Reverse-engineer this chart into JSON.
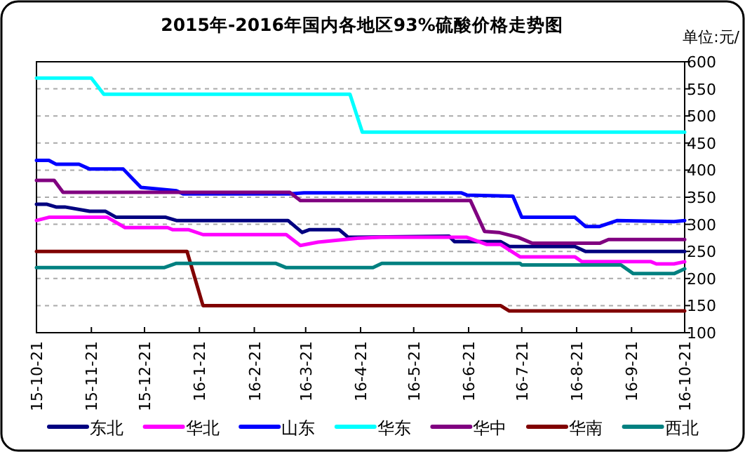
{
  "chart_data": {
    "type": "line",
    "title": "2015年-2016年国内各地区93%硫酸价格走势图",
    "ylabel": "单位:元/",
    "xlim": [
      "2015-10-21",
      "2016-10-21"
    ],
    "xticks": [
      {
        "value": "2015-10-21",
        "label": "15-10-21"
      },
      {
        "value": "2015-11-21",
        "label": "15-11-21"
      },
      {
        "value": "2015-12-21",
        "label": "15-12-21"
      },
      {
        "value": "2016-01-21",
        "label": "16-1-21"
      },
      {
        "value": "2016-02-21",
        "label": "16-2-21"
      },
      {
        "value": "2016-03-21",
        "label": "16-3-21"
      },
      {
        "value": "2016-04-21",
        "label": "16-4-21"
      },
      {
        "value": "2016-05-21",
        "label": "16-5-21"
      },
      {
        "value": "2016-06-21",
        "label": "16-6-21"
      },
      {
        "value": "2016-07-21",
        "label": "16-7-21"
      },
      {
        "value": "2016-08-21",
        "label": "16-8-21"
      },
      {
        "value": "2016-09-21",
        "label": "16-9-21"
      },
      {
        "value": "2016-10-21",
        "label": "16-10-21"
      }
    ],
    "ylim": [
      100,
      600
    ],
    "yticks": [
      100,
      150,
      200,
      250,
      300,
      350,
      400,
      450,
      500,
      550,
      600
    ],
    "grid": "y",
    "legend": "bottom",
    "marker": "none",
    "line_style": "solid",
    "series": [
      {
        "name": "东北",
        "color": "#000080",
        "x": [
          "2015-10-21",
          "2015-10-27",
          "2015-11-01",
          "2015-11-06",
          "2015-11-20",
          "2015-11-29",
          "2015-12-05",
          "2016-01-02",
          "2016-01-08",
          "2016-03-11",
          "2016-03-19",
          "2016-03-23",
          "2016-04-09",
          "2016-04-14",
          "2016-06-10",
          "2016-06-13",
          "2016-07-09",
          "2016-07-14",
          "2016-08-20",
          "2016-08-26",
          "2016-10-21"
        ],
        "values": [
          337,
          337,
          332,
          332,
          324,
          324,
          313,
          313,
          307,
          307,
          285,
          290,
          290,
          276,
          278,
          268,
          268,
          259,
          259,
          250,
          250
        ]
      },
      {
        "name": "华北",
        "color": "#ff00ff",
        "x": [
          "2015-10-21",
          "2015-10-28",
          "2015-11-30",
          "2015-12-10",
          "2016-01-03",
          "2016-01-06",
          "2016-01-15",
          "2016-01-23",
          "2016-03-10",
          "2016-03-18",
          "2016-03-28",
          "2016-04-18",
          "2016-05-02",
          "2016-06-20",
          "2016-07-01",
          "2016-07-09",
          "2016-07-20",
          "2016-08-20",
          "2016-08-24",
          "2016-10-02",
          "2016-10-05",
          "2016-10-15",
          "2016-10-21"
        ],
        "values": [
          307,
          313,
          313,
          294,
          294,
          290,
          290,
          281,
          281,
          261,
          267,
          274,
          276,
          276,
          263,
          263,
          240,
          240,
          231,
          231,
          227,
          227,
          231
        ]
      },
      {
        "name": "山东",
        "color": "#0000ff",
        "x": [
          "2015-10-21",
          "2015-10-28",
          "2015-11-01",
          "2015-11-14",
          "2015-11-20",
          "2015-12-09",
          "2015-12-19",
          "2016-01-08",
          "2016-01-12",
          "2016-03-12",
          "2016-03-20",
          "2016-06-17",
          "2016-06-20",
          "2016-07-16",
          "2016-07-21",
          "2016-08-20",
          "2016-08-26",
          "2016-09-03",
          "2016-09-13",
          "2016-10-15",
          "2016-10-21"
        ],
        "values": [
          418,
          418,
          411,
          411,
          402,
          402,
          368,
          362,
          356,
          356,
          358,
          358,
          354,
          352,
          313,
          313,
          296,
          296,
          307,
          305,
          307
        ]
      },
      {
        "name": "华东",
        "color": "#00ffff",
        "x": [
          "2015-10-21",
          "2015-11-21",
          "2015-11-28",
          "2016-04-15",
          "2016-04-22",
          "2016-10-21"
        ],
        "values": [
          570,
          570,
          540,
          540,
          470,
          470
        ]
      },
      {
        "name": "华中",
        "color": "#800080",
        "x": [
          "2015-10-21",
          "2015-10-31",
          "2015-11-05",
          "2016-03-12",
          "2016-03-18",
          "2016-06-22",
          "2016-06-30",
          "2016-07-08",
          "2016-07-19",
          "2016-07-27",
          "2016-09-03",
          "2016-09-08",
          "2016-10-21"
        ],
        "values": [
          381,
          381,
          359,
          359,
          344,
          344,
          287,
          285,
          276,
          265,
          265,
          272,
          272
        ]
      },
      {
        "name": "华南",
        "color": "#800000",
        "x": [
          "2015-10-21",
          "2016-01-14",
          "2016-01-23",
          "2016-07-09",
          "2016-07-14",
          "2016-10-21"
        ],
        "values": [
          250,
          250,
          150,
          150,
          140,
          140
        ]
      },
      {
        "name": "西北",
        "color": "#008080",
        "x": [
          "2015-10-21",
          "2016-01-01",
          "2016-01-08",
          "2016-03-04",
          "2016-03-10",
          "2016-04-28",
          "2016-05-03",
          "2016-07-20",
          "2016-07-21",
          "2016-09-15",
          "2016-09-22",
          "2016-10-15",
          "2016-10-21"
        ],
        "values": [
          220,
          220,
          228,
          228,
          220,
          220,
          228,
          228,
          225,
          225,
          209,
          209,
          218
        ]
      }
    ]
  }
}
